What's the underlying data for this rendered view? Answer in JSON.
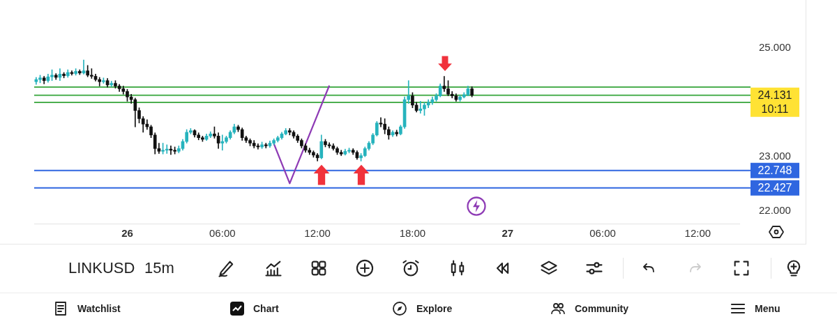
{
  "chart_data": {
    "type": "candlestick",
    "title": "LINKUSD",
    "subtitle": "15m",
    "categories": [
      null,
      null,
      null,
      null,
      null,
      null,
      null,
      null,
      null,
      null,
      null,
      null,
      null,
      null,
      null,
      null,
      null,
      null,
      null,
      null,
      null,
      null,
      null,
      "26",
      null,
      null,
      null,
      null,
      null,
      null,
      null,
      null,
      null,
      null,
      null,
      null,
      null,
      null,
      null,
      null,
      null,
      null,
      null,
      null,
      null,
      null,
      null,
      "06:00",
      null,
      null,
      null,
      null,
      null,
      null,
      null,
      null,
      null,
      null,
      null,
      null,
      null,
      null,
      null,
      null,
      null,
      null,
      null,
      null,
      null,
      null,
      null,
      "12:00",
      null,
      null,
      null,
      null,
      null,
      null,
      null,
      null,
      null,
      null,
      null,
      null,
      null,
      null,
      null,
      null,
      null,
      null,
      null,
      null,
      null,
      null,
      null,
      "18:00",
      null,
      null,
      null,
      null,
      null,
      null,
      null,
      null,
      null,
      null,
      null,
      null,
      null,
      null,
      null,
      null,
      null,
      null,
      null,
      null,
      null,
      null,
      null,
      "27",
      null,
      null,
      null,
      null,
      null,
      null,
      null,
      null,
      null,
      null,
      null,
      null,
      null,
      null,
      null,
      null,
      null,
      null,
      null,
      null,
      null,
      null,
      null,
      "06:00",
      null,
      null,
      null,
      null,
      null,
      null,
      null,
      null,
      null,
      null,
      null,
      null,
      null,
      null,
      null,
      null,
      null,
      null,
      null,
      null,
      null,
      null,
      null,
      "12:00",
      null,
      null,
      null,
      null,
      null,
      null,
      null,
      null,
      null,
      null
    ],
    "ohlc": [
      [
        24.38,
        24.46,
        24.33,
        24.42
      ],
      [
        24.42,
        24.5,
        24.36,
        24.45
      ],
      [
        24.45,
        24.48,
        24.34,
        24.4
      ],
      [
        24.4,
        24.52,
        24.37,
        24.47
      ],
      [
        24.47,
        24.6,
        24.4,
        24.5
      ],
      [
        24.5,
        24.53,
        24.42,
        24.46
      ],
      [
        24.46,
        24.62,
        24.4,
        24.52
      ],
      [
        24.52,
        24.55,
        24.45,
        24.49
      ],
      [
        24.49,
        24.6,
        24.46,
        24.55
      ],
      [
        24.55,
        24.58,
        24.5,
        24.53
      ],
      [
        24.53,
        24.62,
        24.5,
        24.57
      ],
      [
        24.57,
        24.6,
        24.51,
        24.54
      ],
      [
        24.54,
        24.78,
        24.52,
        24.58
      ],
      [
        24.58,
        24.68,
        24.47,
        24.5
      ],
      [
        24.5,
        24.62,
        24.44,
        24.48
      ],
      [
        24.48,
        24.52,
        24.39,
        24.42
      ],
      [
        24.42,
        24.46,
        24.3,
        24.38
      ],
      [
        24.38,
        24.45,
        24.35,
        24.4
      ],
      [
        24.4,
        24.44,
        24.28,
        24.32
      ],
      [
        24.32,
        24.39,
        24.29,
        24.35
      ],
      [
        24.35,
        24.4,
        24.26,
        24.3
      ],
      [
        24.3,
        24.33,
        24.2,
        24.25
      ],
      [
        24.25,
        24.3,
        24.15,
        24.2
      ],
      [
        24.2,
        24.24,
        24.02,
        24.1
      ],
      [
        24.1,
        24.15,
        23.98,
        24.05
      ],
      [
        24.05,
        24.08,
        23.55,
        23.85
      ],
      [
        23.85,
        23.9,
        23.62,
        23.7
      ],
      [
        23.7,
        23.74,
        23.45,
        23.6
      ],
      [
        23.6,
        23.68,
        23.5,
        23.55
      ],
      [
        23.55,
        23.58,
        23.35,
        23.4
      ],
      [
        23.4,
        23.44,
        23.05,
        23.15
      ],
      [
        23.15,
        23.25,
        23.06,
        23.1
      ],
      [
        23.1,
        23.25,
        23.05,
        23.12
      ],
      [
        23.12,
        23.22,
        23.06,
        23.14
      ],
      [
        23.14,
        23.2,
        23.04,
        23.12
      ],
      [
        23.12,
        23.18,
        23.05,
        23.1
      ],
      [
        23.1,
        23.2,
        23.07,
        23.15
      ],
      [
        23.15,
        23.32,
        23.12,
        23.28
      ],
      [
        23.28,
        23.5,
        23.25,
        23.45
      ],
      [
        23.45,
        23.52,
        23.42,
        23.48
      ],
      [
        23.48,
        23.5,
        23.36,
        23.4
      ],
      [
        23.4,
        23.44,
        23.31,
        23.35
      ],
      [
        23.35,
        23.38,
        23.28,
        23.32
      ],
      [
        23.32,
        23.42,
        23.3,
        23.38
      ],
      [
        23.38,
        23.46,
        23.35,
        23.42
      ],
      [
        23.42,
        23.55,
        23.34,
        23.38
      ],
      [
        23.38,
        23.44,
        23.15,
        23.25
      ],
      [
        23.25,
        23.4,
        23.12,
        23.28
      ],
      [
        23.28,
        23.38,
        23.25,
        23.35
      ],
      [
        23.35,
        23.48,
        23.32,
        23.45
      ],
      [
        23.45,
        23.6,
        23.42,
        23.55
      ],
      [
        23.55,
        23.58,
        23.46,
        23.5
      ],
      [
        23.5,
        23.53,
        23.3,
        23.35
      ],
      [
        23.35,
        23.38,
        23.26,
        23.3
      ],
      [
        23.3,
        23.33,
        23.2,
        23.25
      ],
      [
        23.25,
        23.3,
        23.16,
        23.2
      ],
      [
        23.2,
        23.24,
        23.14,
        23.18
      ],
      [
        23.18,
        23.27,
        23.15,
        23.22
      ],
      [
        23.22,
        23.25,
        23.16,
        23.2
      ],
      [
        23.2,
        23.29,
        23.17,
        23.25
      ],
      [
        23.25,
        23.33,
        23.22,
        23.3
      ],
      [
        23.3,
        23.38,
        23.27,
        23.35
      ],
      [
        23.35,
        23.45,
        23.32,
        23.42
      ],
      [
        23.42,
        23.52,
        23.4,
        23.48
      ],
      [
        23.48,
        23.52,
        23.4,
        23.45
      ],
      [
        23.45,
        23.48,
        23.34,
        23.38
      ],
      [
        23.38,
        23.41,
        23.26,
        23.3
      ],
      [
        23.3,
        23.33,
        23.16,
        23.2
      ],
      [
        23.2,
        23.24,
        23.08,
        23.12
      ],
      [
        23.12,
        23.16,
        23.04,
        23.08
      ],
      [
        23.08,
        23.11,
        22.99,
        23.03
      ],
      [
        23.03,
        23.06,
        22.92,
        22.98
      ],
      [
        22.98,
        23.4,
        22.96,
        23.28
      ],
      [
        23.28,
        23.32,
        23.18,
        23.22
      ],
      [
        23.22,
        23.26,
        23.16,
        23.2
      ],
      [
        23.2,
        23.24,
        23.12,
        23.15
      ],
      [
        23.15,
        23.18,
        23.04,
        23.08
      ],
      [
        23.08,
        23.12,
        23.02,
        23.05
      ],
      [
        23.05,
        23.14,
        23.03,
        23.1
      ],
      [
        23.1,
        23.16,
        23.07,
        23.12
      ],
      [
        23.12,
        23.15,
        23.04,
        23.08
      ],
      [
        23.08,
        23.11,
        22.95,
        22.98
      ],
      [
        22.98,
        23.06,
        22.92,
        23.02
      ],
      [
        23.02,
        23.18,
        23,
        23.15
      ],
      [
        23.15,
        23.28,
        23.12,
        23.25
      ],
      [
        23.25,
        23.43,
        23.22,
        23.4
      ],
      [
        23.4,
        23.65,
        23.38,
        23.62
      ],
      [
        23.62,
        23.72,
        23.55,
        23.6
      ],
      [
        23.6,
        23.7,
        23.42,
        23.5
      ],
      [
        23.5,
        23.55,
        23.32,
        23.4
      ],
      [
        23.4,
        23.48,
        23.37,
        23.45
      ],
      [
        23.45,
        23.49,
        23.38,
        23.42
      ],
      [
        23.42,
        23.58,
        23.4,
        23.55
      ],
      [
        23.55,
        24.1,
        23.52,
        24.05
      ],
      [
        24.05,
        24.4,
        23.98,
        24.12
      ],
      [
        24.12,
        24.18,
        23.9,
        23.95
      ],
      [
        23.95,
        24,
        23.82,
        23.85
      ],
      [
        23.85,
        24.02,
        23.8,
        23.88
      ],
      [
        23.88,
        24,
        23.76,
        23.95
      ],
      [
        23.95,
        24.05,
        23.9,
        24
      ],
      [
        24,
        24.1,
        23.96,
        24.05
      ],
      [
        24.05,
        24.16,
        24.02,
        24.12
      ],
      [
        24.12,
        24.34,
        24.1,
        24.3
      ],
      [
        24.3,
        24.48,
        24.2,
        24.25
      ],
      [
        24.25,
        24.4,
        24.12,
        24.15
      ],
      [
        24.15,
        24.2,
        24.08,
        24.12
      ],
      [
        24.12,
        24.16,
        24.02,
        24.05
      ],
      [
        24.05,
        24.13,
        24.02,
        24.1
      ],
      [
        24.1,
        24.18,
        24.08,
        24.14
      ],
      [
        24.14,
        24.3,
        24.12,
        24.25
      ],
      [
        24.25,
        24.29,
        24.1,
        24.131
      ],
      null,
      null,
      null,
      null,
      null,
      null,
      null,
      null,
      null,
      null,
      null,
      null,
      null,
      null,
      null,
      null,
      null,
      null,
      null,
      null,
      null,
      null,
      null,
      null,
      null,
      null,
      null,
      null,
      null,
      null,
      null,
      null,
      null,
      null,
      null,
      null,
      null,
      null,
      null,
      null,
      null,
      null,
      null,
      null,
      null,
      null,
      null,
      null,
      null,
      null,
      null,
      null,
      null,
      null,
      null,
      null,
      null,
      null,
      null,
      null,
      null,
      null,
      null,
      null,
      null,
      null,
      null
    ],
    "colors": [
      "#26b3bd",
      "#26b3bd",
      "#111111",
      "#26b3bd",
      "#26b3bd",
      "#111111",
      "#26b3bd",
      "#111111",
      "#26b3bd",
      "#111111",
      "#26b3bd",
      "#111111",
      "#26b3bd",
      "#111111",
      "#111111",
      "#111111",
      "#111111",
      "#26b3bd",
      "#111111",
      "#26b3bd",
      "#111111",
      "#111111",
      "#111111",
      "#111111",
      "#111111",
      "#111111",
      "#111111",
      "#111111",
      "#111111",
      "#111111",
      "#111111",
      "#111111",
      "#26b3bd",
      "#26b3bd",
      "#111111",
      "#111111",
      "#26b3bd",
      "#26b3bd",
      "#26b3bd",
      "#26b3bd",
      "#111111",
      "#111111",
      "#111111",
      "#26b3bd",
      "#26b3bd",
      "#111111",
      "#111111",
      "#26b3bd",
      "#26b3bd",
      "#26b3bd",
      "#26b3bd",
      "#111111",
      "#111111",
      "#111111",
      "#111111",
      "#111111",
      "#111111",
      "#26b3bd",
      "#111111",
      "#26b3bd",
      "#26b3bd",
      "#26b3bd",
      "#26b3bd",
      "#26b3bd",
      "#111111",
      "#111111",
      "#111111",
      "#111111",
      "#111111",
      "#111111",
      "#111111",
      "#111111",
      "#26b3bd",
      "#111111",
      "#111111",
      "#111111",
      "#111111",
      "#111111",
      "#26b3bd",
      "#26b3bd",
      "#111111",
      "#111111",
      "#26b3bd",
      "#26b3bd",
      "#26b3bd",
      "#26b3bd",
      "#26b3bd",
      "#111111",
      "#111111",
      "#111111",
      "#26b3bd",
      "#111111",
      "#26b3bd",
      "#26b3bd",
      "#26b3bd",
      "#111111",
      "#111111",
      "#26b3bd",
      "#26b3bd",
      "#26b3bd",
      "#26b3bd",
      "#26b3bd",
      "#26b3bd",
      "#111111",
      "#111111",
      "#111111",
      "#111111",
      "#26b3bd",
      "#26b3bd",
      "#26b3bd",
      "#111111",
      null,
      null,
      null,
      null,
      null,
      null,
      null,
      null,
      null,
      null,
      null,
      null,
      null,
      null,
      null,
      null,
      null,
      null,
      null,
      null,
      null,
      null,
      null,
      null,
      null,
      null,
      null,
      null,
      null,
      null,
      null,
      null,
      null,
      null,
      null,
      null,
      null,
      null,
      null,
      null,
      null,
      null,
      null,
      null,
      null,
      null,
      null,
      null,
      null,
      null,
      null,
      null,
      null,
      null,
      null,
      null,
      null,
      null,
      null,
      null,
      null,
      null,
      null,
      null,
      null,
      null,
      null
    ],
    "series": [
      {
        "type": "line",
        "color": "#8e3bb5",
        "values": [
          null,
          null,
          null,
          null,
          null,
          null,
          null,
          null,
          null,
          null,
          null,
          null,
          null,
          null,
          null,
          null,
          null,
          null,
          null,
          null,
          null,
          null,
          null,
          null,
          null,
          null,
          null,
          null,
          null,
          null,
          null,
          null,
          null,
          null,
          null,
          null,
          null,
          null,
          null,
          null,
          null,
          null,
          null,
          null,
          null,
          null,
          null,
          null,
          null,
          null,
          null,
          null,
          null,
          null,
          null,
          null,
          null,
          null,
          null,
          null,
          23.24,
          null,
          null,
          null,
          22.51,
          null,
          null,
          null,
          null,
          null,
          null,
          null,
          null,
          null,
          24.31,
          null,
          null,
          null,
          null,
          null,
          null,
          null,
          null,
          null,
          null,
          null,
          null,
          null,
          null,
          null,
          null,
          null,
          null,
          null,
          null,
          null,
          null,
          null,
          null,
          null,
          null,
          null,
          null,
          null,
          null,
          null,
          null,
          null,
          null,
          null,
          null,
          null,
          null,
          null,
          null,
          null,
          null,
          null,
          null,
          null,
          null,
          null,
          null,
          null,
          null,
          null,
          null,
          null,
          null,
          null,
          null,
          null,
          null,
          null,
          null,
          null,
          null,
          null,
          null,
          null,
          null,
          null,
          null,
          null,
          null,
          null,
          null,
          null,
          null,
          null,
          null,
          null,
          null,
          null,
          null,
          null,
          null,
          null,
          null,
          null,
          null,
          null,
          null,
          null,
          null,
          null,
          null,
          null,
          null,
          null,
          null,
          null,
          null,
          null,
          null,
          null,
          null,
          null
        ]
      }
    ],
    "ylim": [
      21.77,
      25.87
    ],
    "yticks": [
      {
        "value": 22,
        "label": "22.000"
      },
      {
        "value": 23,
        "label": "23.000"
      },
      {
        "value": 25,
        "label": "25.000"
      }
    ],
    "ref_lines": [
      {
        "axis": "y",
        "value": 24.28,
        "color": "#4caf50"
      },
      {
        "axis": "y",
        "value": 24.13,
        "color": "#4caf50"
      },
      {
        "axis": "y",
        "value": 24.0,
        "color": "#4caf50"
      },
      {
        "axis": "y",
        "value": 22.748,
        "label": "22.748",
        "color": "#2f66e0"
      },
      {
        "axis": "y",
        "value": 22.427,
        "label": "22.427",
        "color": "#2f66e0"
      }
    ],
    "annotations": [
      "24.131",
      "10:11",
      "Watchlist",
      "Chart",
      "Explore",
      "Community",
      "Menu"
    ],
    "marker": "none",
    "line_style": "solid"
  }
}
